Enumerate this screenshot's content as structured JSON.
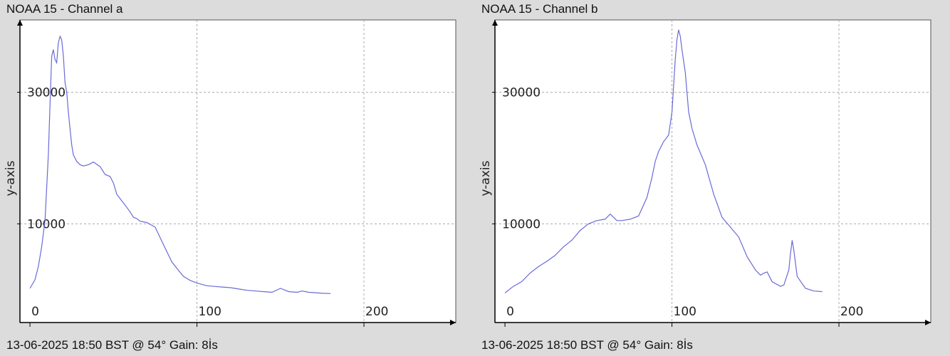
{
  "panels": [
    {
      "title": "NOAA 15 - Channel a",
      "footer": "13-06-2025 18:50 BST @ 54° Gain: 8İs"
    },
    {
      "title": "NOAA 15 - Channel b",
      "footer": "13-06-2025 18:50 BST @ 54° Gain: 8İs"
    }
  ],
  "colors": {
    "background": "#dcdcdc",
    "plot_background": "#ffffff",
    "line": "#6a6ad8",
    "axis": "#000000",
    "grid": "#aaaaaa"
  },
  "chart_data": [
    {
      "type": "line",
      "title": "NOAA 15 - Channel a",
      "xlabel": "",
      "ylabel": "y-axis",
      "xlim": [
        -6,
        255
      ],
      "ylim": [
        -5000,
        41000
      ],
      "x_ticks": [
        0,
        100,
        200
      ],
      "y_ticks": [
        10000,
        30000
      ],
      "grid": true,
      "series": [
        {
          "x": [
            0,
            3,
            5,
            7,
            9,
            11,
            12,
            13,
            14,
            15,
            16,
            17,
            18,
            19,
            20,
            21,
            22,
            23,
            24,
            25,
            26,
            28,
            30,
            32,
            35,
            38,
            42,
            45,
            48,
            50,
            52,
            55,
            58,
            60,
            62,
            64,
            66,
            70,
            75,
            80,
            85,
            90,
            92,
            94,
            96,
            98,
            100,
            103,
            106,
            110,
            115,
            120,
            125,
            130,
            135,
            140,
            145,
            150,
            155,
            160,
            163,
            165,
            167,
            170,
            175,
            180
          ],
          "y": [
            200,
            1500,
            3500,
            6500,
            10500,
            20500,
            28000,
            35500,
            36500,
            35000,
            34500,
            37500,
            38500,
            38000,
            35500,
            31500,
            30000,
            27000,
            24500,
            22000,
            20500,
            19500,
            19000,
            18800,
            19000,
            19400,
            18700,
            17500,
            17200,
            16200,
            14500,
            13500,
            12500,
            11800,
            11000,
            10800,
            10400,
            10200,
            9500,
            6800,
            4200,
            2600,
            2000,
            1700,
            1400,
            1200,
            1000,
            800,
            600,
            500,
            400,
            300,
            100,
            -100,
            -200,
            -300,
            -400,
            200,
            -300,
            -400,
            -200,
            -300,
            -400,
            -450,
            -550,
            -600
          ]
        }
      ]
    },
    {
      "type": "line",
      "title": "NOAA 15 - Channel b",
      "xlabel": "",
      "ylabel": "y-axis",
      "xlim": [
        -6,
        255
      ],
      "ylim": [
        -5000,
        41000
      ],
      "x_ticks": [
        0,
        100,
        200
      ],
      "y_ticks": [
        10000,
        30000
      ],
      "grid": true,
      "series": [
        {
          "x": [
            0,
            5,
            10,
            15,
            20,
            25,
            30,
            35,
            40,
            45,
            50,
            55,
            60,
            63,
            65,
            67,
            70,
            75,
            80,
            85,
            88,
            90,
            92,
            95,
            98,
            100,
            102,
            103,
            104,
            105,
            106,
            108,
            110,
            112,
            115,
            120,
            125,
            130,
            135,
            140,
            145,
            150,
            153,
            155,
            157,
            160,
            165,
            167,
            170,
            171,
            172,
            173,
            175,
            180,
            185,
            190
          ],
          "y": [
            -500,
            500,
            1200,
            2500,
            3500,
            4300,
            5200,
            6500,
            7500,
            9000,
            10000,
            10500,
            10700,
            11500,
            11000,
            10500,
            10500,
            10700,
            11200,
            14000,
            17000,
            19500,
            21000,
            22500,
            23500,
            27000,
            35000,
            38000,
            39500,
            38500,
            36500,
            33000,
            27000,
            24500,
            22000,
            19000,
            14500,
            11000,
            9500,
            8000,
            5000,
            3000,
            2200,
            2500,
            2700,
            1200,
            500,
            700,
            3000,
            5500,
            7500,
            6000,
            2000,
            200,
            -200,
            -300
          ]
        }
      ]
    }
  ]
}
